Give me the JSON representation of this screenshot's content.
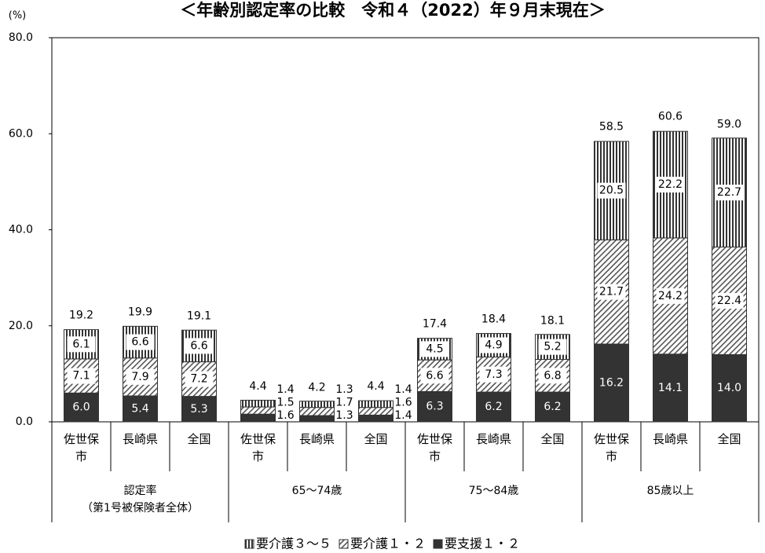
{
  "chart_data": {
    "type": "stacked_bar",
    "title": "＜年齢別認定率の比較　令和４（2022）年９月末現在＞",
    "y_unit": "(%)",
    "ylim": [
      0,
      80
    ],
    "yticks": [
      {
        "value": 0,
        "label": "0.0"
      },
      {
        "value": 20,
        "label": "20.0"
      },
      {
        "value": 40,
        "label": "40.0"
      },
      {
        "value": 60,
        "label": "60.0"
      },
      {
        "value": 80,
        "label": "80.0"
      }
    ],
    "groups": [
      "認定率\n（第1号被保険者全体）",
      "65〜74歳",
      "75〜84歳",
      "85歳以上"
    ],
    "categories": [
      "佐世保市",
      "長崎県",
      "全国",
      "佐世保市",
      "長崎県",
      "全国",
      "佐世保市",
      "長崎県",
      "全国",
      "佐世保市",
      "長崎県",
      "全国"
    ],
    "series": [
      {
        "name": "要介護３〜５",
        "color": "#333333",
        "pattern": "vertical",
        "values": [
          6.1,
          6.6,
          6.6,
          1.4,
          1.3,
          1.4,
          4.5,
          4.9,
          5.2,
          20.5,
          22.2,
          22.7
        ],
        "value_labels": [
          "6.1",
          "6.6",
          "6.6",
          "1.4",
          "1.3",
          "1.4",
          "4.5",
          "4.9",
          "5.2",
          "20.5",
          "22.2",
          "22.7"
        ]
      },
      {
        "name": "要介護１・２",
        "color": "#333333",
        "pattern": "diagonal",
        "values": [
          7.1,
          7.9,
          7.2,
          1.5,
          1.7,
          1.6,
          6.6,
          7.3,
          6.8,
          21.7,
          24.2,
          22.4
        ],
        "value_labels": [
          "7.1",
          "7.9",
          "7.2",
          "1.5",
          "1.7",
          "1.6",
          "6.6",
          "7.3",
          "6.8",
          "21.7",
          "24.2",
          "22.4"
        ]
      },
      {
        "name": "要支援１・２",
        "color": "#333333",
        "pattern": "solid",
        "values": [
          6.0,
          5.4,
          5.3,
          1.6,
          1.3,
          1.4,
          6.3,
          6.2,
          6.2,
          16.2,
          14.1,
          14.0
        ],
        "value_labels": [
          "6.0",
          "5.4",
          "5.3",
          "1.6",
          "1.3",
          "1.4",
          "6.3",
          "6.2",
          "6.2",
          "16.2",
          "14.1",
          "14.0"
        ]
      }
    ],
    "totals": {
      "values": [
        19.2,
        19.9,
        19.1,
        4.4,
        4.2,
        4.4,
        17.4,
        18.4,
        18.1,
        58.5,
        60.6,
        59.0
      ],
      "value_labels": [
        "19.2",
        "19.9",
        "19.1",
        "4.4",
        "4.2",
        "4.4",
        "17.4",
        "18.4",
        "18.1",
        "58.5",
        "60.6",
        "59.0"
      ]
    }
  }
}
